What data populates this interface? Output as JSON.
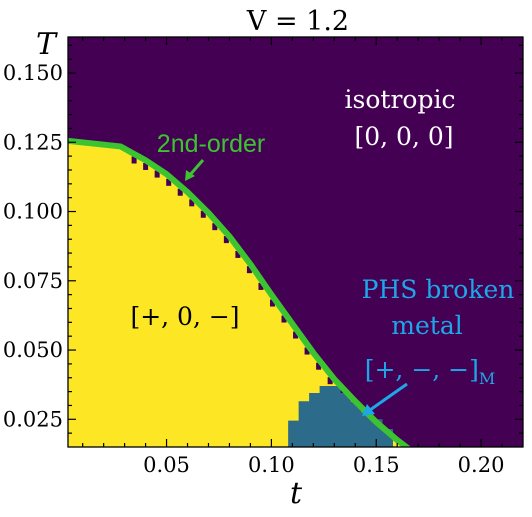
{
  "chart_data": {
    "type": "heatmap",
    "title": "V = 1.2",
    "xlabel": "t",
    "ylabel": "T",
    "xlim": [
      0.003,
      0.22
    ],
    "ylim": [
      0.015,
      0.163
    ],
    "xticks": [
      {
        "value": 0.05,
        "label": "0.05"
      },
      {
        "value": 0.1,
        "label": "0.10"
      },
      {
        "value": 0.15,
        "label": "0.15"
      },
      {
        "value": 0.2,
        "label": "0.20"
      }
    ],
    "yticks": [
      {
        "value": 0.025,
        "label": "0.025"
      },
      {
        "value": 0.05,
        "label": "0.050"
      },
      {
        "value": 0.075,
        "label": "0.075"
      },
      {
        "value": 0.1,
        "label": "0.100"
      },
      {
        "value": 0.125,
        "label": "0.125"
      },
      {
        "value": 0.15,
        "label": "0.150"
      }
    ],
    "phases": [
      {
        "label": "[+, 0, −]",
        "color": "#fde725",
        "label_at": [
          0.058,
          0.051
        ]
      },
      {
        "label": "PHS broken metal",
        "sublabel": "[+, −, −]",
        "subscript": "M",
        "color": "#2c6b8a",
        "label_at": [
          0.155,
          0.055
        ]
      },
      {
        "label": "isotropic",
        "sublabel": "[0, 0, 0]",
        "color": "#440154",
        "label_at": [
          0.16,
          0.135
        ]
      }
    ],
    "phase_boundary": {
      "label": "2nd-order",
      "color": "#3bc430",
      "t": [
        0.003,
        0.028,
        0.04,
        0.05,
        0.06,
        0.07,
        0.08,
        0.09,
        0.1,
        0.11,
        0.12,
        0.13,
        0.14,
        0.15,
        0.16,
        0.167
      ],
      "T": [
        0.1255,
        0.1235,
        0.1185,
        0.1135,
        0.107,
        0.0995,
        0.091,
        0.081,
        0.07,
        0.0595,
        0.049,
        0.0395,
        0.0315,
        0.024,
        0.0175,
        0.0135
      ]
    },
    "phs_region_top": {
      "t": [
        0.108,
        0.113,
        0.118,
        0.123,
        0.128,
        0.133,
        0.138,
        0.143,
        0.148,
        0.153
      ],
      "T": [
        0.0245,
        0.0315,
        0.0345,
        0.037,
        0.037,
        0.0345,
        0.031,
        0.0275,
        0.025,
        0.0215
      ]
    },
    "grid": false,
    "legend": "none"
  }
}
